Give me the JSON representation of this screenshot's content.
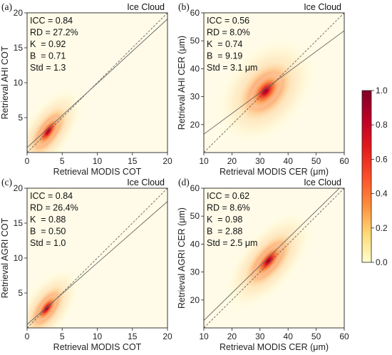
{
  "chart_data": [
    {
      "type": "scatter",
      "panel": "(a)",
      "title": "Ice Cloud",
      "xlabel": "Retrieval MODIS COT",
      "ylabel": "Retrieval AHI COT",
      "xlim": [
        0,
        20
      ],
      "ylim": [
        0,
        20
      ],
      "xticks": [
        0,
        5,
        10,
        15,
        20
      ],
      "yticks": [
        5,
        10,
        15,
        20
      ],
      "stats": [
        "ICC = 0.84",
        "RD = 27.2%",
        "K  = 0.92",
        "B  = 0.71",
        "Std = 1.3"
      ],
      "fit": {
        "slope": 0.92,
        "intercept": 0.71
      },
      "density_center": [
        3,
        3
      ],
      "density_spread": [
        1.5,
        2.2
      ],
      "density_rho": 0.8
    },
    {
      "type": "scatter",
      "panel": "(b)",
      "title": "Ice Cloud",
      "xlabel": "Retrieval MODIS CER (μm)",
      "ylabel": "Retrieval AHI CER (μm)",
      "xlim": [
        10,
        60
      ],
      "ylim": [
        10,
        60
      ],
      "xticks": [
        10,
        20,
        30,
        40,
        50,
        60
      ],
      "yticks": [
        20,
        30,
        40,
        50,
        60
      ],
      "stats": [
        "ICC = 0.56",
        "RD = 8.0%",
        "K  = 0.74",
        "B  = 9.19",
        "Std = 3.1 μm"
      ],
      "fit": {
        "slope": 0.74,
        "intercept": 9.19
      },
      "density_center": [
        32,
        32
      ],
      "density_spread": [
        5,
        6
      ],
      "density_rho": 0.55
    },
    {
      "type": "scatter",
      "panel": "(c)",
      "title": "Ice Cloud",
      "xlabel": "Retrieval MODIS COT",
      "ylabel": "Retrieval AGRI COT",
      "xlim": [
        0,
        20
      ],
      "ylim": [
        0,
        20
      ],
      "xticks": [
        0,
        5,
        10,
        15,
        20
      ],
      "yticks": [
        5,
        10,
        15,
        20
      ],
      "stats": [
        "ICC = 0.84",
        "RD = 26.4%",
        "K  = 0.88",
        "B  = 0.50",
        "Std = 1.0"
      ],
      "fit": {
        "slope": 0.88,
        "intercept": 0.5
      },
      "density_center": [
        2.8,
        2.8
      ],
      "density_spread": [
        1.4,
        2.0
      ],
      "density_rho": 0.8
    },
    {
      "type": "scatter",
      "panel": "(d)",
      "title": "Ice Cloud",
      "xlabel": "Retrieval MODIS CER (μm)",
      "ylabel": "Retrieval AGRI CER (μm)",
      "xlim": [
        10,
        60
      ],
      "ylim": [
        10,
        60
      ],
      "xticks": [
        10,
        20,
        30,
        40,
        50,
        60
      ],
      "yticks": [
        20,
        30,
        40,
        50,
        60
      ],
      "stats": [
        "ICC = 0.62",
        "RD = 8.6%",
        "K  = 0.98",
        "B  = 2.88",
        "Std = 2.5 μm"
      ],
      "fit": {
        "slope": 0.98,
        "intercept": 2.88
      },
      "density_center": [
        33,
        34
      ],
      "density_spread": [
        5,
        6
      ],
      "density_rho": 0.75
    }
  ],
  "colorbar": {
    "min": 0.0,
    "max": 1.0,
    "ticks": [
      "0.0",
      "0.2",
      "0.4",
      "0.6",
      "0.8",
      "1.0"
    ],
    "colormap": [
      "#ffffcc",
      "#fed976",
      "#fd8d3c",
      "#fc4e2a",
      "#e31a1c",
      "#bd0026",
      "#800026"
    ]
  }
}
